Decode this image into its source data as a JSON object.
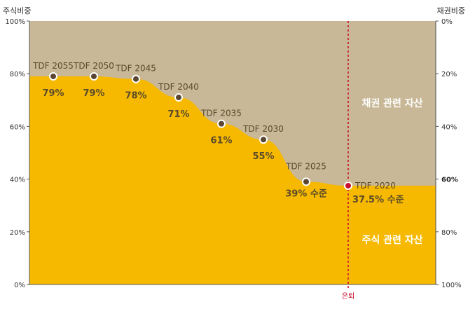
{
  "chart_data": {
    "type": "area",
    "left_axis_title": "주식비중",
    "right_axis_title": "채권비중",
    "left_ticks": [
      "100%",
      "80%",
      "60%",
      "40%",
      "20%",
      "0%"
    ],
    "right_ticks": [
      "0%",
      "20%",
      "40%",
      "60%",
      "80%",
      "100%"
    ],
    "ylim": [
      0,
      100
    ],
    "colors": {
      "stock": "#f6b900",
      "bond": "#c8b897",
      "retire_line": "#c8102e",
      "marker": "#5a4630"
    },
    "region_labels": {
      "bond": "채권 관련 자산",
      "stock": "주식 관련 자산"
    },
    "retirement_label": "은퇴",
    "points": [
      {
        "name": "TDF 2055",
        "value": 79,
        "label": "79%"
      },
      {
        "name": "TDF 2050",
        "value": 79,
        "label": "79%"
      },
      {
        "name": "TDF 2045",
        "value": 78,
        "label": "78%"
      },
      {
        "name": "TDF 2040",
        "value": 71,
        "label": "71%"
      },
      {
        "name": "TDF 2035",
        "value": 61,
        "label": "61%"
      },
      {
        "name": "TDF 2030",
        "value": 55,
        "label": "55%"
      },
      {
        "name": "TDF 2025",
        "value": 39,
        "label": "39% 수준"
      },
      {
        "name": "TDF 2020",
        "value": 37.5,
        "label": "37.5% 수준"
      }
    ]
  }
}
